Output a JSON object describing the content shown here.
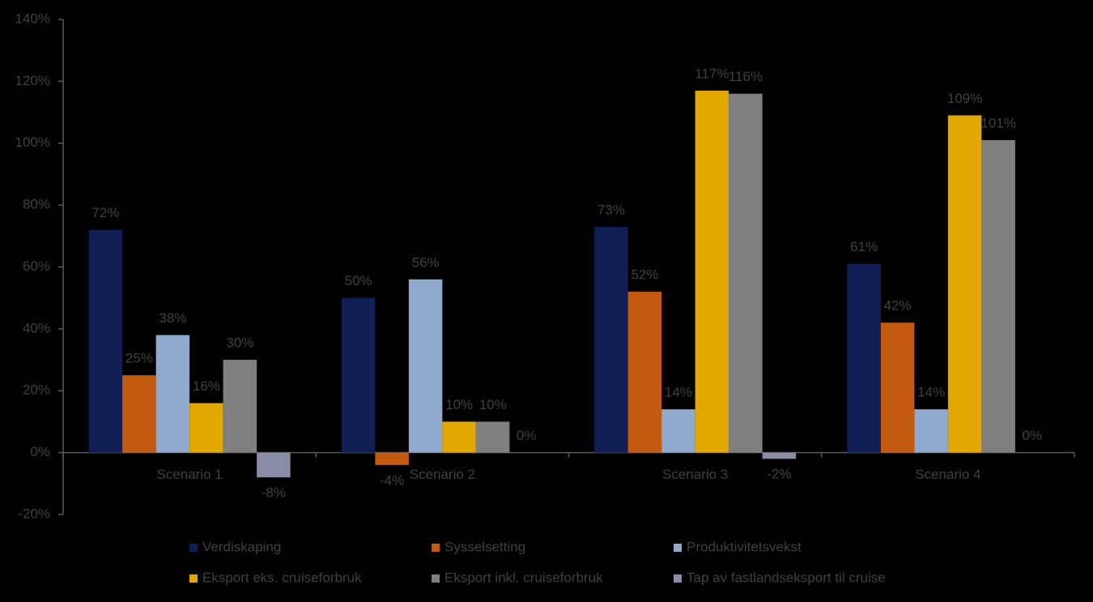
{
  "chart_data": {
    "type": "bar",
    "categories": [
      "Scenario 1",
      "Scenario 2",
      "Scenario 3",
      "Scenario 4"
    ],
    "series": [
      {
        "name": "Verdiskaping",
        "color": "#0f1f55",
        "values": [
          72,
          50,
          73,
          61
        ],
        "value_labels": [
          "72%",
          "50%",
          "73%",
          "61%"
        ]
      },
      {
        "name": "Sysselsetting",
        "color": "#c55a11",
        "values": [
          25,
          -4,
          52,
          42
        ],
        "value_labels": [
          "25%",
          "-4%",
          "52%",
          "42%"
        ]
      },
      {
        "name": "Produktivitetsvekst",
        "color": "#8faacc",
        "values": [
          38,
          56,
          14,
          14
        ],
        "value_labels": [
          "38%",
          "56%",
          "14%",
          "14%"
        ]
      },
      {
        "name": "Eksport eks. cruiseforbruk",
        "color": "#e2a800",
        "values": [
          16,
          10,
          117,
          109
        ],
        "value_labels": [
          "16%",
          "10%",
          "117%",
          "109%"
        ]
      },
      {
        "name": "Eksport inkl. cruiseforbruk",
        "color": "#808080",
        "values": [
          30,
          10,
          116,
          101
        ],
        "value_labels": [
          "30%",
          "10%",
          "116%",
          "101%"
        ]
      },
      {
        "name": "Tap av fastlandseksport til cruise",
        "color": "#8a8da6",
        "values": [
          -8,
          0,
          -2,
          0
        ],
        "value_labels": [
          "-8%",
          "0%",
          "-2%",
          "0%"
        ]
      }
    ],
    "ylim": [
      -20,
      140
    ],
    "yticks": [
      {
        "value": -20,
        "label": "-20%"
      },
      {
        "value": 0,
        "label": "0%"
      },
      {
        "value": 20,
        "label": "20%"
      },
      {
        "value": 40,
        "label": "40%"
      },
      {
        "value": 60,
        "label": "60%"
      },
      {
        "value": 80,
        "label": "80%"
      },
      {
        "value": 100,
        "label": "100%"
      },
      {
        "value": 120,
        "label": "120%"
      },
      {
        "value": 140,
        "label": "140%"
      }
    ],
    "legend": "bottom"
  }
}
